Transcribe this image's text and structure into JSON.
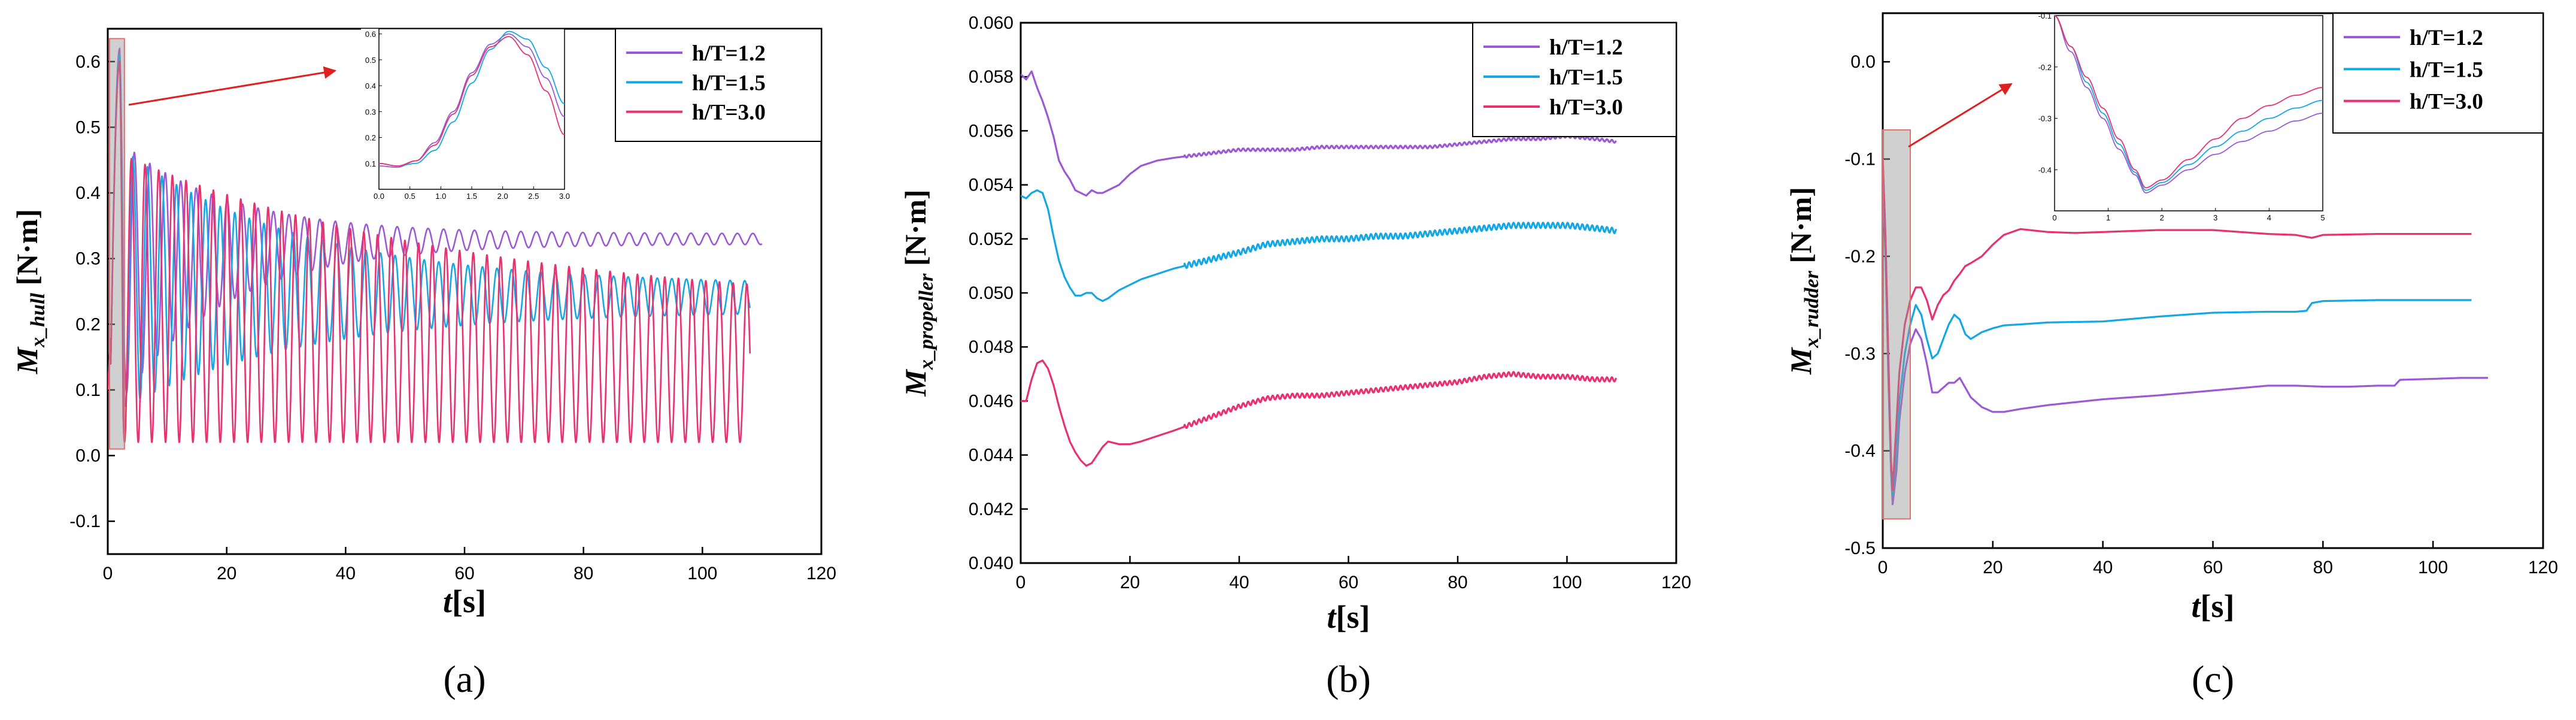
{
  "series_colors": [
    "#9b59d6",
    "#14a7e6",
    "#e8326f"
  ],
  "chart_data": [
    {
      "panel": "(a)",
      "type": "line",
      "ylabel_main": "M",
      "ylabel_sub": "x_hull",
      "ylabel_unit": "[N·m]",
      "xlabel_main": "t",
      "xlabel_unit": "[s]",
      "xlim": [
        0,
        120
      ],
      "ylim": [
        -0.15,
        0.65
      ],
      "xticks": [
        0,
        20,
        40,
        60,
        80,
        100,
        120
      ],
      "xtick_labels": [
        "0",
        "20",
        "40",
        "60",
        "80",
        "100",
        "120"
      ],
      "yticks": [
        -0.1,
        0.0,
        0.1,
        0.2,
        0.3,
        0.4,
        0.5,
        0.6
      ],
      "ytick_labels": [
        "-0.1",
        "0.0",
        "0.1",
        "0.2",
        "0.3",
        "0.4",
        "0.5",
        "0.6"
      ],
      "legend": [
        "h/T=1.2",
        "h/T=1.5",
        "h/T=3.0"
      ],
      "highlight_x": [
        0.3,
        2.8
      ],
      "series": [
        {
          "name": "h/T=1.2",
          "model": "osc",
          "params": {
            "tEnd": 110,
            "peak": 0.62,
            "meanStart": 0.28,
            "meanEnd": 0.33,
            "ampStart": 0.2,
            "ampEnd": 0.008,
            "decay": 18,
            "period": 2.6,
            "phase": 0.3
          }
        },
        {
          "name": "h/T=1.5",
          "model": "osc",
          "params": {
            "tEnd": 108,
            "peak": 0.61,
            "meanStart": 0.27,
            "meanEnd": 0.24,
            "ampStart": 0.2,
            "ampEnd": 0.02,
            "decay": 30,
            "period": 2.45,
            "phase": 0.6
          }
        },
        {
          "name": "h/T=3.0",
          "model": "osc",
          "params": {
            "tEnd": 108,
            "peak": 0.6,
            "meanStart": 0.24,
            "meanEnd": 0.12,
            "ampStart": 0.22,
            "ampEnd": 0.1,
            "decay": 60,
            "period": 2.3,
            "phase": 0.9
          }
        }
      ],
      "inset": {
        "xlim": [
          0,
          3
        ],
        "ylim": [
          0,
          0.62
        ],
        "xticks": [
          0,
          0.5,
          1.0,
          1.5,
          2.0,
          2.5,
          3.0
        ],
        "xtick_labels": [
          "0.0",
          "0.5",
          "1.0",
          "1.5",
          "2.0",
          "2.5",
          "3.0"
        ],
        "yticks": [
          0.1,
          0.2,
          0.3,
          0.4,
          0.5,
          0.6
        ],
        "ytick_labels": [
          "0.1",
          "0.2",
          "0.3",
          "0.4",
          "0.5",
          "0.6"
        ],
        "series": [
          {
            "name": "h/T=1.2",
            "x": [
              0,
              0.3,
              0.6,
              0.9,
              1.2,
              1.5,
              1.8,
              2.1,
              2.4,
              2.7,
              3.0
            ],
            "y": [
              0.09,
              0.085,
              0.11,
              0.18,
              0.3,
              0.45,
              0.56,
              0.6,
              0.55,
              0.43,
              0.28
            ]
          },
          {
            "name": "h/T=1.5",
            "x": [
              0,
              0.3,
              0.6,
              0.9,
              1.2,
              1.5,
              1.8,
              2.1,
              2.4,
              2.7,
              3.0
            ],
            "y": [
              0.1,
              0.09,
              0.1,
              0.15,
              0.26,
              0.41,
              0.54,
              0.61,
              0.58,
              0.47,
              0.33
            ]
          },
          {
            "name": "h/T=3.0",
            "x": [
              0,
              0.3,
              0.6,
              0.9,
              1.2,
              1.5,
              1.8,
              2.1,
              2.4,
              2.7,
              3.0
            ],
            "y": [
              0.1,
              0.09,
              0.11,
              0.17,
              0.29,
              0.44,
              0.55,
              0.59,
              0.52,
              0.38,
              0.21
            ]
          }
        ]
      }
    },
    {
      "panel": "(b)",
      "type": "line",
      "ylabel_main": "M",
      "ylabel_sub": "x_propeller",
      "ylabel_unit": "[N·m]",
      "xlabel_main": "t",
      "xlabel_unit": "[s]",
      "xlim": [
        0,
        120
      ],
      "ylim": [
        0.04,
        0.06
      ],
      "xticks": [
        0,
        20,
        40,
        60,
        80,
        100,
        120
      ],
      "xtick_labels": [
        "0",
        "20",
        "40",
        "60",
        "80",
        "100",
        "120"
      ],
      "yticks": [
        0.04,
        0.042,
        0.044,
        0.046,
        0.048,
        0.05,
        0.052,
        0.054,
        0.056,
        0.058,
        0.06
      ],
      "ytick_labels": [
        "0.040",
        "0.042",
        "0.044",
        "0.046",
        "0.048",
        "0.050",
        "0.052",
        "0.054",
        "0.056",
        "0.058",
        "0.060"
      ],
      "legend": [
        "h/T=1.2",
        "h/T=1.5",
        "h/T=3.0"
      ],
      "series": [
        {
          "name": "h/T=1.2",
          "model": "pts",
          "ripple": 5e-05,
          "x": [
            0,
            1,
            2,
            3,
            4,
            5,
            6,
            7,
            8,
            9,
            10,
            11,
            12,
            13,
            14,
            15,
            16,
            18,
            20,
            22,
            25,
            28,
            32,
            36,
            40,
            45,
            50,
            55,
            60,
            65,
            70,
            75,
            80,
            85,
            90,
            95,
            100,
            105,
            109
          ],
          "y": [
            0.0581,
            0.0579,
            0.0582,
            0.0576,
            0.0571,
            0.0565,
            0.0558,
            0.0549,
            0.0545,
            0.0542,
            0.0538,
            0.0537,
            0.0536,
            0.0538,
            0.0537,
            0.0537,
            0.0538,
            0.054,
            0.0544,
            0.0547,
            0.0549,
            0.055,
            0.0551,
            0.0552,
            0.0553,
            0.0553,
            0.0553,
            0.0554,
            0.0554,
            0.0554,
            0.0554,
            0.0554,
            0.0555,
            0.0556,
            0.0557,
            0.0557,
            0.0558,
            0.0557,
            0.0556
          ]
        },
        {
          "name": "h/T=1.5",
          "model": "pts",
          "ripple": 0.0001,
          "x": [
            0,
            1,
            2,
            3,
            4,
            5,
            6,
            7,
            8,
            9,
            10,
            11,
            12,
            13,
            14,
            15,
            16,
            18,
            20,
            22,
            25,
            28,
            32,
            36,
            40,
            45,
            50,
            55,
            60,
            65,
            70,
            75,
            80,
            85,
            90,
            95,
            100,
            105,
            109
          ],
          "y": [
            0.0536,
            0.0535,
            0.0537,
            0.0538,
            0.0537,
            0.0531,
            0.0521,
            0.0512,
            0.0506,
            0.0502,
            0.0499,
            0.0499,
            0.05,
            0.05,
            0.0498,
            0.0497,
            0.0498,
            0.0501,
            0.0503,
            0.0505,
            0.0507,
            0.0509,
            0.0511,
            0.0513,
            0.0515,
            0.0518,
            0.0519,
            0.052,
            0.052,
            0.0521,
            0.0521,
            0.0522,
            0.0523,
            0.0524,
            0.0525,
            0.0525,
            0.0525,
            0.0524,
            0.0523
          ]
        },
        {
          "name": "h/T=3.0",
          "model": "pts",
          "ripple": 8e-05,
          "x": [
            0,
            1,
            2,
            3,
            4,
            5,
            6,
            7,
            8,
            9,
            10,
            11,
            12,
            13,
            14,
            15,
            16,
            18,
            20,
            22,
            25,
            28,
            32,
            36,
            40,
            45,
            50,
            55,
            60,
            65,
            70,
            75,
            80,
            85,
            90,
            95,
            100,
            105,
            109
          ],
          "y": [
            0.046,
            0.046,
            0.0468,
            0.0474,
            0.0475,
            0.0472,
            0.0466,
            0.0458,
            0.0451,
            0.0445,
            0.0441,
            0.0438,
            0.0436,
            0.0437,
            0.044,
            0.0443,
            0.0445,
            0.0444,
            0.0444,
            0.0445,
            0.0447,
            0.0449,
            0.0452,
            0.0455,
            0.0458,
            0.0461,
            0.0462,
            0.0462,
            0.0463,
            0.0464,
            0.0465,
            0.0466,
            0.0467,
            0.0469,
            0.047,
            0.0469,
            0.0469,
            0.0468,
            0.0468
          ]
        }
      ]
    },
    {
      "panel": "(c)",
      "type": "line",
      "ylabel_main": "M",
      "ylabel_sub": "x_rudder",
      "ylabel_unit": "[N·m]",
      "xlabel_main": "t",
      "xlabel_unit": "[s]",
      "xlim": [
        0,
        120
      ],
      "ylim": [
        -0.5,
        0.05
      ],
      "xticks": [
        0,
        20,
        40,
        60,
        80,
        100,
        120
      ],
      "xtick_labels": [
        "0",
        "20",
        "40",
        "60",
        "80",
        "100",
        "120"
      ],
      "yticks": [
        -0.5,
        -0.4,
        -0.3,
        -0.2,
        -0.1,
        0.0
      ],
      "ytick_labels": [
        "-0.5",
        "-0.4",
        "-0.3",
        "-0.2",
        "-0.1",
        "0.0"
      ],
      "legend": [
        "h/T=1.2",
        "h/T=1.5",
        "h/T=3.0"
      ],
      "highlight_x": [
        0,
        5
      ],
      "series": [
        {
          "name": "h/T=1.2",
          "model": "pts",
          "ripple": 0,
          "x": [
            0,
            0.5,
            1,
            1.5,
            1.8,
            2.5,
            3,
            4,
            5,
            6,
            7,
            8,
            9,
            10,
            11,
            12,
            13,
            14,
            15,
            16,
            18,
            20,
            22,
            25,
            30,
            40,
            50,
            60,
            70,
            75,
            80,
            85,
            90,
            93,
            94,
            100,
            105,
            110
          ],
          "y": [
            -0.12,
            -0.2,
            -0.32,
            -0.42,
            -0.455,
            -0.42,
            -0.37,
            -0.32,
            -0.29,
            -0.275,
            -0.285,
            -0.31,
            -0.34,
            -0.34,
            -0.335,
            -0.33,
            -0.33,
            -0.325,
            -0.335,
            -0.345,
            -0.355,
            -0.36,
            -0.36,
            -0.357,
            -0.353,
            -0.347,
            -0.343,
            -0.338,
            -0.333,
            -0.333,
            -0.334,
            -0.334,
            -0.333,
            -0.333,
            -0.327,
            -0.326,
            -0.325,
            -0.325
          ]
        },
        {
          "name": "h/T=1.5",
          "model": "pts",
          "ripple": 0,
          "x": [
            0,
            0.5,
            1,
            1.5,
            1.8,
            2.5,
            3,
            4,
            5,
            6,
            7,
            8,
            9,
            10,
            11,
            12,
            13,
            14,
            15,
            16,
            18,
            20,
            22,
            25,
            30,
            40,
            50,
            60,
            70,
            75,
            77,
            78,
            80,
            90,
            100,
            107
          ],
          "y": [
            -0.1,
            -0.18,
            -0.3,
            -0.42,
            -0.445,
            -0.4,
            -0.35,
            -0.3,
            -0.27,
            -0.25,
            -0.26,
            -0.285,
            -0.305,
            -0.3,
            -0.285,
            -0.27,
            -0.26,
            -0.265,
            -0.28,
            -0.285,
            -0.278,
            -0.274,
            -0.271,
            -0.27,
            -0.268,
            -0.267,
            -0.262,
            -0.258,
            -0.257,
            -0.257,
            -0.256,
            -0.248,
            -0.246,
            -0.245,
            -0.245,
            -0.245
          ]
        },
        {
          "name": "h/T=3.0",
          "model": "pts",
          "ripple": 0,
          "x": [
            0,
            0.5,
            1,
            1.5,
            1.8,
            2.5,
            3,
            4,
            5,
            6,
            7,
            8,
            9,
            10,
            11,
            12,
            13,
            14,
            15,
            16,
            18,
            20,
            22,
            25,
            30,
            35,
            40,
            50,
            60,
            70,
            75,
            78,
            80,
            90,
            100,
            107
          ],
          "y": [
            -0.1,
            -0.18,
            -0.3,
            -0.41,
            -0.44,
            -0.37,
            -0.32,
            -0.27,
            -0.245,
            -0.232,
            -0.232,
            -0.245,
            -0.265,
            -0.25,
            -0.24,
            -0.235,
            -0.225,
            -0.218,
            -0.21,
            -0.207,
            -0.2,
            -0.188,
            -0.178,
            -0.172,
            -0.175,
            -0.176,
            -0.175,
            -0.173,
            -0.173,
            -0.177,
            -0.178,
            -0.181,
            -0.178,
            -0.177,
            -0.177,
            -0.177
          ]
        }
      ],
      "inset": {
        "xlim": [
          0,
          5
        ],
        "ylim": [
          -0.48,
          -0.1
        ],
        "xticks": [
          0,
          1,
          2,
          3,
          4,
          5
        ],
        "xtick_labels": [
          "0",
          "1",
          "2",
          "3",
          "4",
          "5"
        ],
        "yticks": [
          -0.1,
          -0.2,
          -0.3,
          -0.4
        ],
        "ytick_labels": [
          "-0.1",
          "-0.2",
          "-0.3",
          "-0.4"
        ],
        "series": [
          {
            "name": "h/T=1.2",
            "x": [
              0,
              0.3,
              0.6,
              0.9,
              1.2,
              1.5,
              1.7,
              2.0,
              2.5,
              3.0,
              3.5,
              4.0,
              4.5,
              5.0
            ],
            "y": [
              -0.1,
              -0.17,
              -0.24,
              -0.3,
              -0.36,
              -0.41,
              -0.445,
              -0.43,
              -0.4,
              -0.37,
              -0.345,
              -0.325,
              -0.305,
              -0.29
            ]
          },
          {
            "name": "h/T=1.5",
            "x": [
              0,
              0.3,
              0.6,
              0.9,
              1.2,
              1.5,
              1.7,
              2.0,
              2.5,
              3.0,
              3.5,
              4.0,
              4.5,
              5.0
            ],
            "y": [
              -0.1,
              -0.16,
              -0.23,
              -0.29,
              -0.35,
              -0.405,
              -0.44,
              -0.425,
              -0.39,
              -0.355,
              -0.325,
              -0.3,
              -0.28,
              -0.265
            ]
          },
          {
            "name": "h/T=3.0",
            "x": [
              0,
              0.3,
              0.6,
              0.9,
              1.2,
              1.5,
              1.7,
              2.0,
              2.5,
              3.0,
              3.5,
              4.0,
              4.5,
              5.0
            ],
            "y": [
              -0.1,
              -0.16,
              -0.22,
              -0.28,
              -0.34,
              -0.4,
              -0.435,
              -0.42,
              -0.38,
              -0.34,
              -0.3,
              -0.275,
              -0.255,
              -0.24
            ]
          }
        ]
      }
    }
  ]
}
